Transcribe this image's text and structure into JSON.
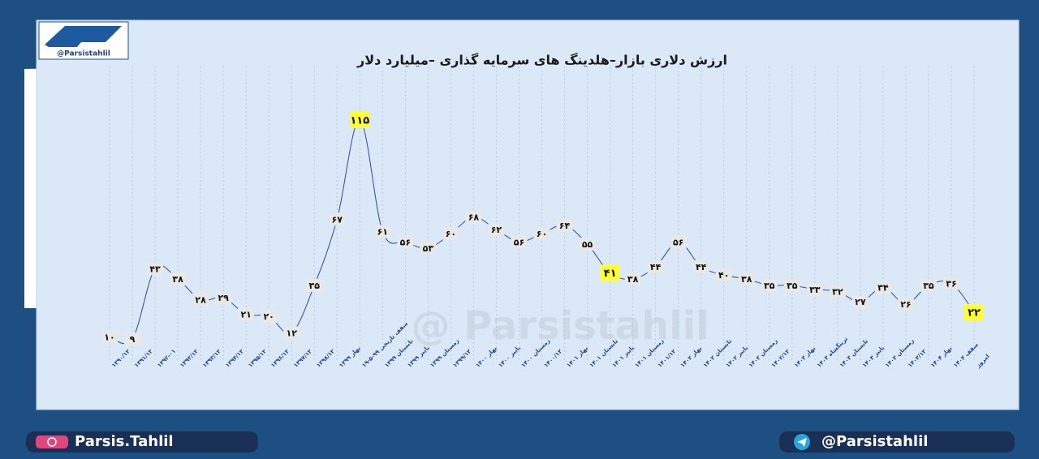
{
  "logo_handle": "@Parsistahlil",
  "watermark": "@ Parsistahlil",
  "footer": {
    "instagram": "Parsis.Tahlil",
    "telegram": "@Parsistahlil"
  },
  "chart_data": {
    "type": "line",
    "title": "ارزش دلاری بازار–هلدینگ های سرمایه گذاری –میلیارد دلار",
    "categories": [
      "۱۳۹۰/۱۲",
      "۱۳۹۱/۱۲",
      "۱۳۹۲-۰۱",
      "۱۳۹۲/۱۲",
      "۱۳۹۳/۱۲",
      "۱۳۹۴/۱۲",
      "۱۳۹۵/۱۲",
      "۱۳۹۶/۱۲",
      "۱۳۹۷/۱۲",
      "۱۳۹۸/۱۲",
      "بهار ۱۳۹۹",
      "سقف تاریخی ۹۹-۵-۱۹",
      "تابستان ۱۳۹۹",
      "پاییز ۱۳۹۹",
      "زمستان ۱۳۹۹",
      "۱۳۹۹/۱۲",
      "بهار ۱۴۰۰",
      "پاییز ۱۴۰۰",
      "زمستان ۱۴۰۰",
      "۱۴۰۰/۱۲",
      "بهار ۱۴۰۱",
      "تابستان ۱۴۰۱",
      "پاییز ۱۴۰۱",
      "زمستان ۱۴۰۱",
      "۱۴۰۱/۱۲",
      "بهار ۱۴۰۲",
      "تابستان ۱۴۰۲",
      "پاییز ۱۴۰۲",
      "زمستان ۱۴۰۲",
      "۱۴۰۲/۱۲",
      "بهار ۱۴۰۳",
      "ترینگشاه ۱۴۰۳",
      "تابستان ۱۴۰۳",
      "پاییز ۱۴۰۳",
      "زمستان ۱۴۰۳",
      "۱۴۰۳/۱۲",
      "بهار ۱۴۰۴",
      "سقف ۱۴۰۴",
      "امروز"
    ],
    "values": [
      10,
      9,
      43,
      38,
      28,
      29,
      21,
      20,
      12,
      35,
      67,
      115,
      61,
      56,
      53,
      60,
      68,
      62,
      56,
      60,
      64,
      55,
      41,
      38,
      44,
      56,
      44,
      40,
      38,
      35,
      35,
      33,
      32,
      27,
      34,
      26,
      35,
      36,
      22
    ],
    "value_labels": [
      "۱۰",
      "۹",
      "۴۳",
      "۳۸",
      "۲۸",
      "۲۹",
      "۲۱",
      "۲۰",
      "۱۲",
      "۳۵",
      "۶۷",
      "۱۱۵",
      "۶۱",
      "۵۶",
      "۵۳",
      "۶۰",
      "۶۸",
      "۶۲",
      "۵۶",
      "۶۰",
      "۶۴",
      "۵۵",
      "۴۱",
      "۳۸",
      "۴۴",
      "۵۶",
      "۴۴",
      "۴۰",
      "۳۸",
      "۳۵",
      "۳۵",
      "۳۳",
      "۳۲",
      "۲۷",
      "۳۴",
      "۲۶",
      "۳۵",
      "۳۶",
      "۲۲"
    ],
    "value_label_colors": [
      "#e8e8e8",
      "#e8e8e8",
      "#e8e8e8",
      "#e8e8e8",
      "#e8e8e8",
      "#e8e8e8",
      "#e8e8e8",
      "#e8e8e8",
      "#e8e8e8",
      "#e8e8e8",
      "#e8e8e8",
      "#ffff33",
      "#e8e8e8",
      "#e8e8e8",
      "#e8e8e8",
      "#e8e8e8",
      "#e8e8e8",
      "#e8e8e8",
      "#e8e8e8",
      "#e8e8e8",
      "#e8e8e8",
      "#e8e8e8",
      "#ffff33",
      "#e8e8e8",
      "#e8e8e8",
      "#e8e8e8",
      "#e8e8e8",
      "#e8e8e8",
      "#e8e8e8",
      "#e8e8e8",
      "#e8e8e8",
      "#e8e8e8",
      "#e8e8e8",
      "#e8e8e8",
      "#e8e8e8",
      "#e8e8e8",
      "#e8e8e8",
      "#e8e8e8",
      "#ffff33"
    ],
    "color": "#2a4a9a",
    "grid": true
  }
}
